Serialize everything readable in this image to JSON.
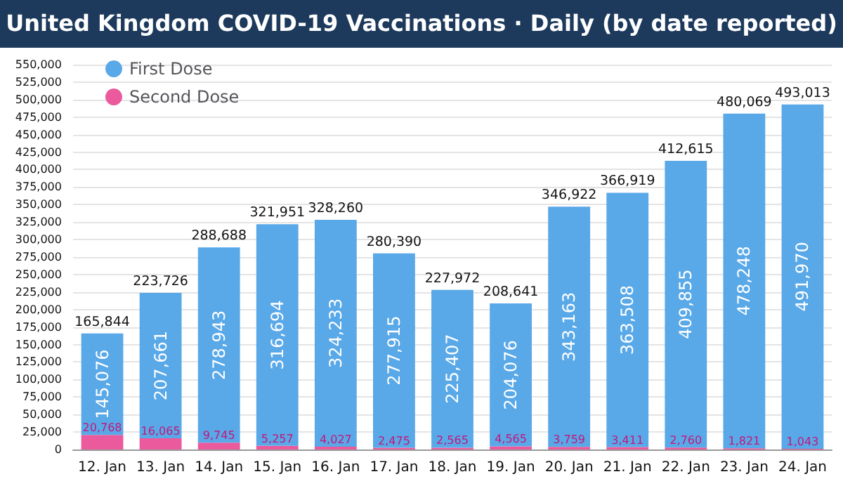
{
  "chart_data": {
    "type": "bar",
    "title": "United Kingdom COVID-19 Vaccinations · Daily (by date reported)",
    "categories": [
      "12. Jan",
      "13. Jan",
      "14. Jan",
      "15. Jan",
      "16. Jan",
      "17. Jan",
      "18. Jan",
      "19. Jan",
      "20. Jan",
      "21. Jan",
      "22. Jan",
      "23. Jan",
      "24. Jan"
    ],
    "stacked": true,
    "series": [
      {
        "name": "Second Dose",
        "color": "#ea5a9c",
        "values": [
          20768,
          16065,
          9745,
          5257,
          4027,
          2475,
          2565,
          4565,
          3759,
          3411,
          2760,
          1821,
          1043
        ],
        "value_labels": [
          "20,768",
          "16,065",
          "9,745",
          "5,257",
          "4,027",
          "2,475",
          "2,565",
          "4,565",
          "3,759",
          "3,411",
          "2,760",
          "1,821",
          "1,043"
        ]
      },
      {
        "name": "First Dose",
        "color": "#59a8e8",
        "values": [
          145076,
          207661,
          278943,
          316694,
          324233,
          277915,
          225407,
          204076,
          343163,
          363508,
          409855,
          478248,
          491970
        ],
        "value_labels": [
          "145,076",
          "207,661",
          "278,943",
          "316,694",
          "324,233",
          "277,915",
          "225,407",
          "204,076",
          "343,163",
          "363,508",
          "409,855",
          "478,248",
          "491,970"
        ]
      }
    ],
    "totals": [
      "165,844",
      "223,726",
      "288,688",
      "321,951",
      "328,260",
      "280,390",
      "227,972",
      "208,641",
      "346,922",
      "366,919",
      "412,615",
      "480,069",
      "493,013"
    ],
    "ylim": [
      0,
      550000
    ],
    "yticks": [
      {
        "value": 0,
        "label": "0"
      },
      {
        "value": 25000,
        "label": "25,000"
      },
      {
        "value": 50000,
        "label": "50,000"
      },
      {
        "value": 75000,
        "label": "75,000"
      },
      {
        "value": 100000,
        "label": "100,000"
      },
      {
        "value": 125000,
        "label": "125,000"
      },
      {
        "value": 150000,
        "label": "150,000"
      },
      {
        "value": 175000,
        "label": "175,000"
      },
      {
        "value": 200000,
        "label": "200,000"
      },
      {
        "value": 225000,
        "label": "225,000"
      },
      {
        "value": 250000,
        "label": "250,000"
      },
      {
        "value": 275000,
        "label": "275,000"
      },
      {
        "value": 300000,
        "label": "300,000"
      },
      {
        "value": 325000,
        "label": "325,000"
      },
      {
        "value": 350000,
        "label": "350,000"
      },
      {
        "value": 375000,
        "label": "375,000"
      },
      {
        "value": 400000,
        "label": "400,000"
      },
      {
        "value": 425000,
        "label": "425,000"
      },
      {
        "value": 450000,
        "label": "450,000"
      },
      {
        "value": 475000,
        "label": "475,000"
      },
      {
        "value": 500000,
        "label": "500,000"
      },
      {
        "value": 525000,
        "label": "525,000"
      },
      {
        "value": 550000,
        "label": "550,000"
      }
    ],
    "grid": "y",
    "legend": "top left"
  }
}
